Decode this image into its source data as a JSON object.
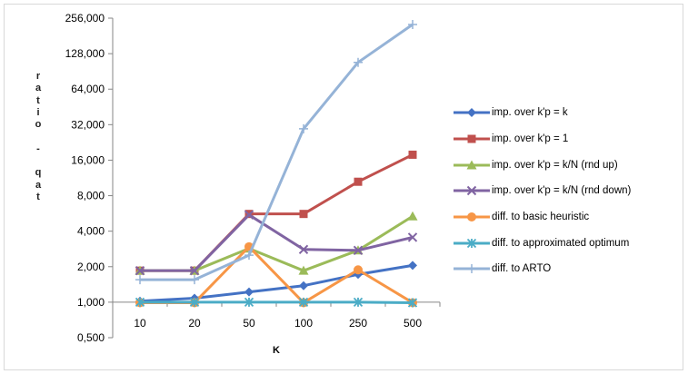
{
  "chart_data": {
    "type": "line",
    "title": "",
    "xlabel": "K",
    "ylabel": "ratio - qat",
    "y_scale": "log2",
    "ylim": [
      0.5,
      256
    ],
    "y_ticks": [
      "0,500",
      "1,000",
      "2,000",
      "4,000",
      "8,000",
      "16,000",
      "32,000",
      "64,000",
      "128,000",
      "256,000"
    ],
    "categories": [
      "10",
      "20",
      "50",
      "100",
      "250",
      "500"
    ],
    "grid": false,
    "legend_position": "right",
    "series": [
      {
        "name": "imp. over k'p = k",
        "color": "#4472c4",
        "marker": "diamond",
        "values": [
          1.02,
          1.08,
          1.22,
          1.38,
          1.72,
          2.05
        ]
      },
      {
        "name": "imp. over k'p = 1",
        "color": "#c0504d",
        "marker": "square",
        "values": [
          1.85,
          1.85,
          5.6,
          5.6,
          10.5,
          17.8
        ]
      },
      {
        "name": "imp. over k'p = k/N (rnd up)",
        "color": "#9bbb59",
        "marker": "triangle",
        "values": [
          1.85,
          1.85,
          2.85,
          1.85,
          2.75,
          5.35
        ]
      },
      {
        "name": "imp. over k'p = k/N (rnd down)",
        "color": "#8064a2",
        "marker": "x",
        "values": [
          1.85,
          1.85,
          5.5,
          2.8,
          2.75,
          3.55
        ]
      },
      {
        "name": "diff. to basic heuristic",
        "color": "#f79646",
        "marker": "circle",
        "values": [
          0.99,
          0.99,
          2.95,
          0.99,
          1.88,
          0.99
        ]
      },
      {
        "name": "diff. to approximated optimum",
        "color": "#4bacc6",
        "marker": "star",
        "values": [
          1.0,
          1.0,
          1.0,
          1.0,
          1.0,
          0.99
        ]
      },
      {
        "name": "diff. to ARTO",
        "color": "#95b3d7",
        "marker": "plus",
        "values": [
          1.55,
          1.55,
          2.5,
          29.5,
          108,
          226
        ]
      }
    ]
  }
}
